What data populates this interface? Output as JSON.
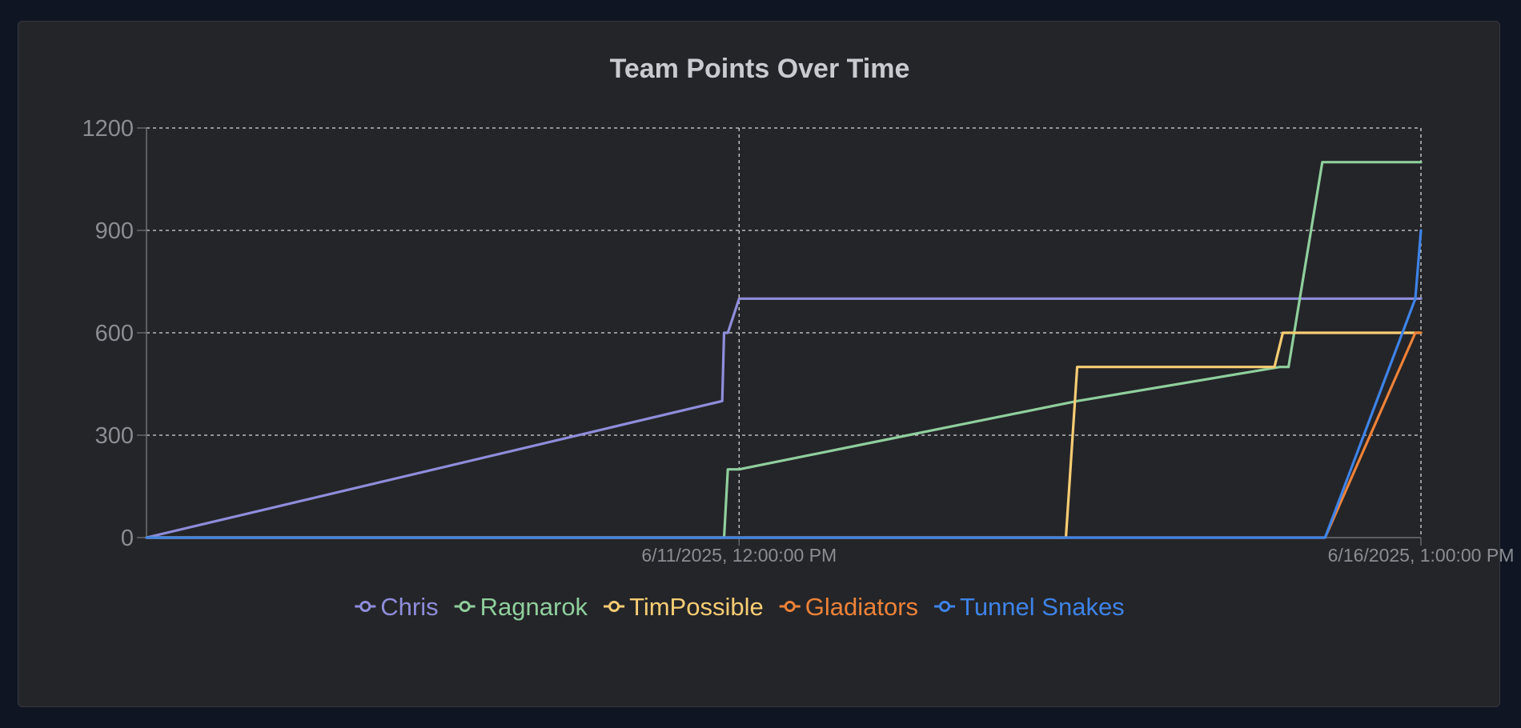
{
  "chart_data": {
    "type": "line",
    "title": "Team Points Over Time",
    "xlabel": "",
    "ylabel": "",
    "ylim": [
      0,
      1200
    ],
    "yticks": [
      0,
      300,
      600,
      900,
      1200
    ],
    "xlim": [
      "2025-06-07T02:50:00",
      "2025-06-16T13:00:00"
    ],
    "xticks": [
      {
        "value": "2025-06-11T12:00:00",
        "label": "6/11/2025, 12:00:00 PM"
      },
      {
        "value": "2025-06-16T13:00:00",
        "label": "6/16/2025, 1:00:00 PM"
      }
    ],
    "grid": true,
    "legend_position": "bottom",
    "series": [
      {
        "name": "Chris",
        "color": "#8f8ddc",
        "points": [
          {
            "x": "2025-06-07T02:50:00",
            "y": 0
          },
          {
            "x": "2025-06-11T09:00:00",
            "y": 400
          },
          {
            "x": "2025-06-11T09:20:00",
            "y": 600
          },
          {
            "x": "2025-06-11T10:00:00",
            "y": 600
          },
          {
            "x": "2025-06-11T12:00:00",
            "y": 700
          },
          {
            "x": "2025-06-16T13:00:00",
            "y": 700
          }
        ]
      },
      {
        "name": "Ragnarok",
        "color": "#8fcf9d",
        "points": [
          {
            "x": "2025-06-07T02:50:00",
            "y": 0
          },
          {
            "x": "2025-06-11T09:20:00",
            "y": 0
          },
          {
            "x": "2025-06-11T10:00:00",
            "y": 200
          },
          {
            "x": "2025-06-11T12:00:00",
            "y": 200
          },
          {
            "x": "2025-06-14T00:00:00",
            "y": 400
          },
          {
            "x": "2025-06-15T12:00:00",
            "y": 500
          },
          {
            "x": "2025-06-15T13:30:00",
            "y": 500
          },
          {
            "x": "2025-06-15T19:30:00",
            "y": 1100
          },
          {
            "x": "2025-06-16T13:00:00",
            "y": 1100
          }
        ]
      },
      {
        "name": "TimPossible",
        "color": "#f7cd74",
        "points": [
          {
            "x": "2025-06-07T02:50:00",
            "y": 0
          },
          {
            "x": "2025-06-13T22:00:00",
            "y": 0
          },
          {
            "x": "2025-06-14T00:00:00",
            "y": 500
          },
          {
            "x": "2025-06-15T11:00:00",
            "y": 500
          },
          {
            "x": "2025-06-15T12:30:00",
            "y": 600
          },
          {
            "x": "2025-06-16T13:00:00",
            "y": 600
          }
        ]
      },
      {
        "name": "Gladiators",
        "color": "#ee8238",
        "points": [
          {
            "x": "2025-06-07T02:50:00",
            "y": 0
          },
          {
            "x": "2025-06-15T20:00:00",
            "y": 0
          },
          {
            "x": "2025-06-16T12:00:00",
            "y": 600
          },
          {
            "x": "2025-06-16T13:00:00",
            "y": 600
          }
        ]
      },
      {
        "name": "Tunnel Snakes",
        "color": "#3e83e8",
        "points": [
          {
            "x": "2025-06-07T02:50:00",
            "y": 0
          },
          {
            "x": "2025-06-15T20:00:00",
            "y": 0
          },
          {
            "x": "2025-06-16T12:00:00",
            "y": 700
          },
          {
            "x": "2025-06-16T13:00:00",
            "y": 900
          }
        ]
      }
    ]
  },
  "colors": {
    "background": "#0f1523",
    "panel": "#242528",
    "grid": "#d8d8d8",
    "axis": "#6f7177",
    "text": "#8b8d93",
    "title": "#c9cbd0"
  }
}
